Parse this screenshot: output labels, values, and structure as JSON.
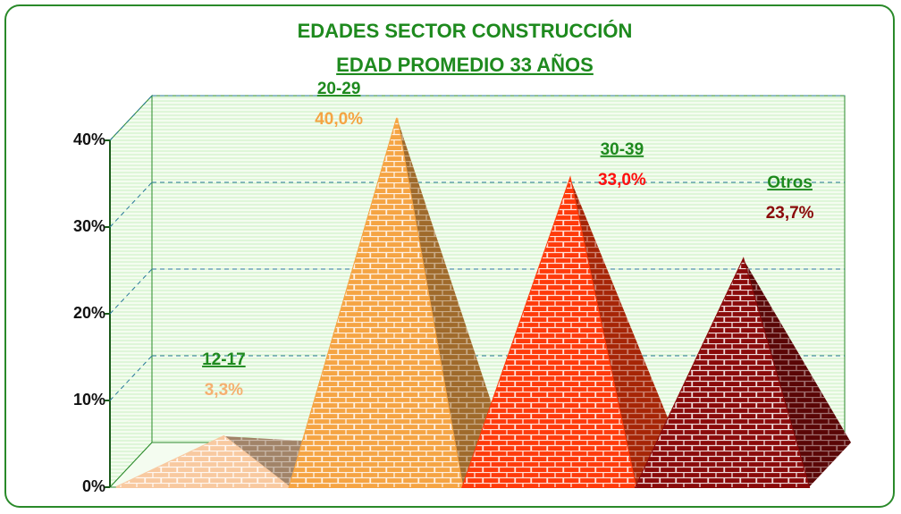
{
  "chart_data": {
    "type": "pyramid",
    "title": "EDADES SECTOR CONSTRUCCIÓN",
    "subtitle": "EDAD PROMEDIO 33 AÑOS",
    "categories": [
      "12-17",
      "20-29",
      "30-39",
      "Otros"
    ],
    "values": [
      3.3,
      40.0,
      33.0,
      23.7
    ],
    "value_labels": [
      "3,3%",
      "40,0%",
      "33,0%",
      "23,7%"
    ],
    "colors": [
      "#f8c9a0",
      "#f5a443",
      "#ff3a0a",
      "#8a0a0a"
    ],
    "label_colors": [
      "#f5b070",
      "#f5a443",
      "#ff1010",
      "#8a0a0a"
    ],
    "ylim": [
      0,
      40
    ],
    "yticks": [
      {
        "value": 0,
        "label": "0%"
      },
      {
        "value": 10,
        "label": "10%"
      },
      {
        "value": 20,
        "label": "20%"
      },
      {
        "value": 30,
        "label": "30%"
      },
      {
        "value": 40,
        "label": "40%"
      }
    ],
    "grid": true
  }
}
